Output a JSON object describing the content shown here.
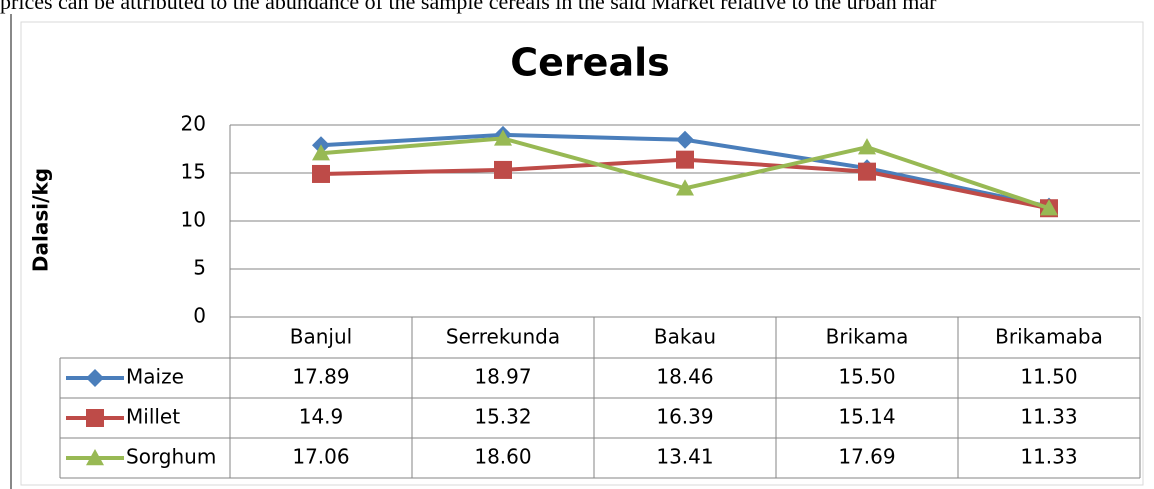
{
  "page_text": "prices can be attributed to the abundance of the sample cereals in the said Market relative to the urban mar",
  "chart_data": {
    "type": "line",
    "title": "Cereals",
    "y_label": "Dalasi/kg",
    "categories": [
      "Banjul",
      "Serrekunda",
      "Bakau",
      "Brikama",
      "Brikamaba"
    ],
    "series": [
      {
        "name": "Maize",
        "color": "#4a7ebb",
        "marker": "diamond",
        "values": [
          17.89,
          18.97,
          18.46,
          15.5,
          11.5
        ],
        "value_labels": [
          "17.89",
          "18.97",
          "18.46",
          "15.50",
          "11.50"
        ]
      },
      {
        "name": "Millet",
        "color": "#be4b48",
        "marker": "square",
        "values": [
          14.9,
          15.32,
          16.39,
          15.14,
          11.33
        ],
        "value_labels": [
          "14.9",
          "15.32",
          "16.39",
          "15.14",
          "11.33"
        ]
      },
      {
        "name": "Sorghum",
        "color": "#98b954",
        "marker": "triangle",
        "values": [
          17.06,
          18.6,
          13.41,
          17.69,
          11.33
        ],
        "value_labels": [
          "17.06",
          "18.60",
          "13.41",
          "17.69",
          "11.33"
        ]
      }
    ],
    "ylim": [
      0,
      20
    ],
    "yticks": [
      0,
      5,
      10,
      15,
      20
    ],
    "grid": true,
    "data_table": true
  }
}
